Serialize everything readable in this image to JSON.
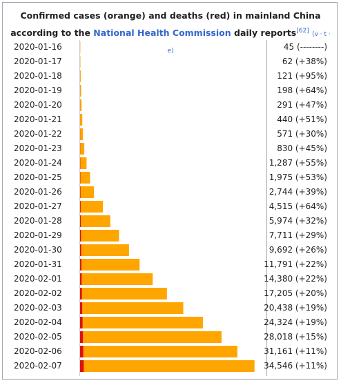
{
  "chart_data": {
    "type": "bar",
    "title": "Confirmed cases (orange) and deaths (red) in mainland China according to the",
    "title_link": "National Health Commission",
    "title_end": "daily reports",
    "citation": "[62]",
    "nav": [
      "v",
      "t",
      "e"
    ],
    "categories": [
      "2020-01-16",
      "2020-01-17",
      "2020-01-18",
      "2020-01-19",
      "2020-01-20",
      "2020-01-21",
      "2020-01-22",
      "2020-01-23",
      "2020-01-24",
      "2020-01-25",
      "2020-01-26",
      "2020-01-27",
      "2020-01-28",
      "2020-01-29",
      "2020-01-30",
      "2020-01-31",
      "2020-02-01",
      "2020-02-02",
      "2020-02-03",
      "2020-02-04",
      "2020-02-05",
      "2020-02-06",
      "2020-02-07"
    ],
    "series": [
      {
        "color": "#ffa500",
        "values": [
          45,
          62,
          121,
          198,
          291,
          440,
          571,
          830,
          1287,
          1975,
          2744,
          4515,
          5974,
          7711,
          9692,
          11791,
          14380,
          17205,
          20438,
          24324,
          28018,
          31161,
          34546
        ],
        "value_labels": [
          "45 (--------)",
          "62 (+38%)",
          "121 (+95%)",
          "198 (+64%)",
          "291 (+47%)",
          "440 (+51%)",
          "571 (+30%)",
          "830 (+45%)",
          "1,287 (+55%)",
          "1,975 (+53%)",
          "2,744 (+39%)",
          "4,515 (+64%)",
          "5,974 (+32%)",
          "7,711 (+29%)",
          "9,692 (+26%)",
          "11,791 (+22%)",
          "14,380 (+22%)",
          "17,205 (+20%)",
          "20,438 (+19%)",
          "24,324 (+19%)",
          "28,018 (+15%)",
          "31,161 (+11%)",
          "34,546 (+11%)"
        ]
      },
      {
        "color": "#dd1111",
        "values": [
          2,
          2,
          3,
          3,
          6,
          9,
          17,
          25,
          41,
          56,
          80,
          106,
          132,
          170,
          213,
          259,
          304,
          361,
          425,
          490,
          563,
          636,
          722
        ]
      }
    ],
    "xlim": [
      0,
      35000
    ]
  }
}
